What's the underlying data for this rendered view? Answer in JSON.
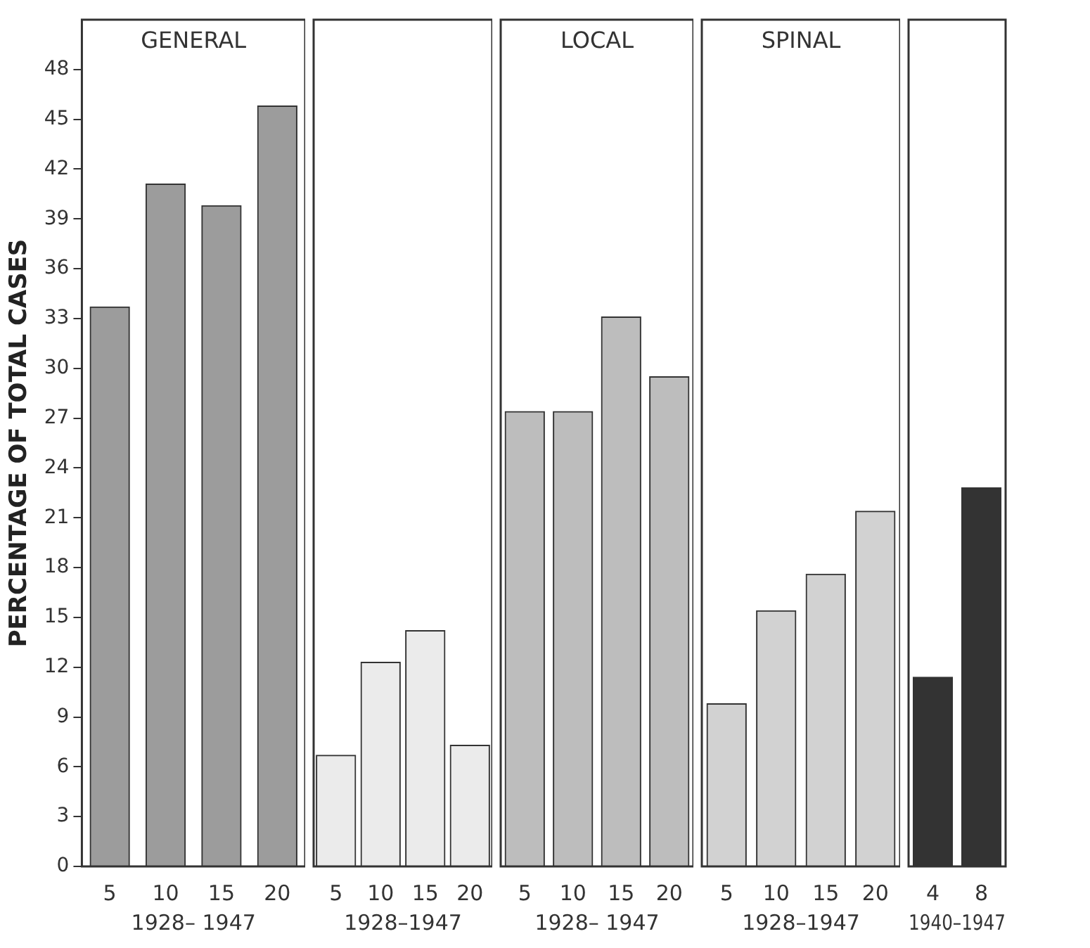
{
  "chart_data": [
    {
      "type": "bar",
      "title": "GENERAL",
      "categories": [
        "5",
        "10",
        "15",
        "20"
      ],
      "values": [
        33.7,
        41.1,
        39.8,
        45.8
      ],
      "color": "#9c9c9c",
      "xlabel": "1928– 1947",
      "ylabel": "PERCENTAGE OF TOTAL CASES",
      "ylim": [
        0,
        51
      ],
      "yticks": [
        0,
        3,
        6,
        9,
        12,
        15,
        18,
        21,
        24,
        27,
        30,
        33,
        36,
        39,
        42,
        45,
        48
      ]
    },
    {
      "type": "bar",
      "categories": [
        "5",
        "10",
        "15",
        "20"
      ],
      "values": [
        6.7,
        12.3,
        14.2,
        7.3
      ],
      "color": "#ebebeb",
      "xlabel": "1928–1947",
      "ylim": [
        0,
        51
      ],
      "yticks": [
        0,
        3,
        6,
        9,
        12,
        15,
        18,
        21,
        24,
        27,
        30,
        33,
        36,
        39,
        42,
        45,
        48
      ],
      "tick_labels": "x"
    },
    {
      "type": "bar",
      "title": "LOCAL",
      "categories": [
        "5",
        "10",
        "15",
        "20"
      ],
      "values": [
        27.4,
        27.4,
        33.1,
        29.5
      ],
      "color": "#bdbdbd",
      "xlabel": "1928– 1947",
      "ylim": [
        0,
        51
      ],
      "yticks": [
        0,
        3,
        6,
        9,
        12,
        15,
        18,
        21,
        24,
        27,
        30,
        33,
        36,
        39,
        42,
        45,
        48
      ],
      "tick_labels": "x"
    },
    {
      "type": "bar",
      "title": "SPINAL",
      "categories": [
        "5",
        "10",
        "15",
        "20"
      ],
      "values": [
        9.8,
        15.4,
        17.6,
        21.4
      ],
      "color": "#d2d2d2",
      "xlabel": "1928–1947",
      "ylim": [
        0,
        51
      ],
      "yticks": [
        0,
        3,
        6,
        9,
        12,
        15,
        18,
        21,
        24,
        27,
        30,
        33,
        36,
        39,
        42,
        45,
        48
      ],
      "tick_labels": "x"
    },
    {
      "type": "bar",
      "categories": [
        "4",
        "8"
      ],
      "values": [
        11.4,
        22.8
      ],
      "color": "#333333",
      "xlabel": "1940–1947",
      "ylim": [
        0,
        51
      ],
      "yticks": [
        0,
        3,
        6,
        9,
        12,
        15,
        18,
        21,
        24,
        27,
        30,
        33,
        36,
        39,
        42,
        45,
        48
      ],
      "tick_labels": "x"
    }
  ]
}
